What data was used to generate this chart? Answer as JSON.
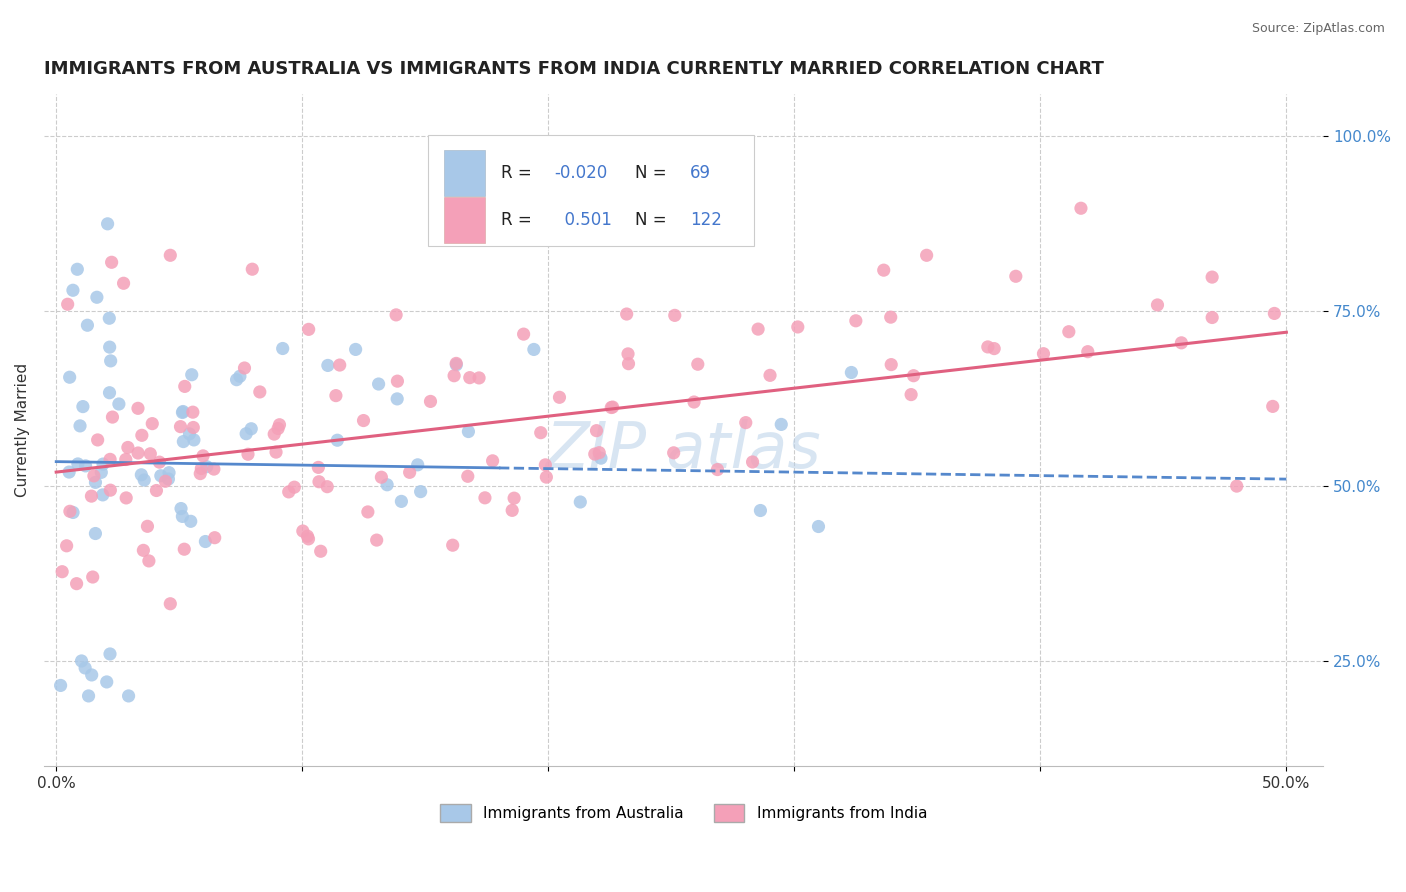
{
  "title": "IMMIGRANTS FROM AUSTRALIA VS IMMIGRANTS FROM INDIA CURRENTLY MARRIED CORRELATION CHART",
  "source": "Source: ZipAtlas.com",
  "ylabel": "Currently Married",
  "color_australia": "#a8c8e8",
  "color_india": "#f4a0b8",
  "trend_color_australia": "#5588cc",
  "trend_color_india": "#e06080",
  "ytick_color": "#4488cc",
  "title_fontsize": 13,
  "label_fontsize": 11,
  "tick_fontsize": 11,
  "legend_labels": [
    "Immigrants from Australia",
    "Immigrants from India"
  ],
  "watermark": "ZIP atlas"
}
